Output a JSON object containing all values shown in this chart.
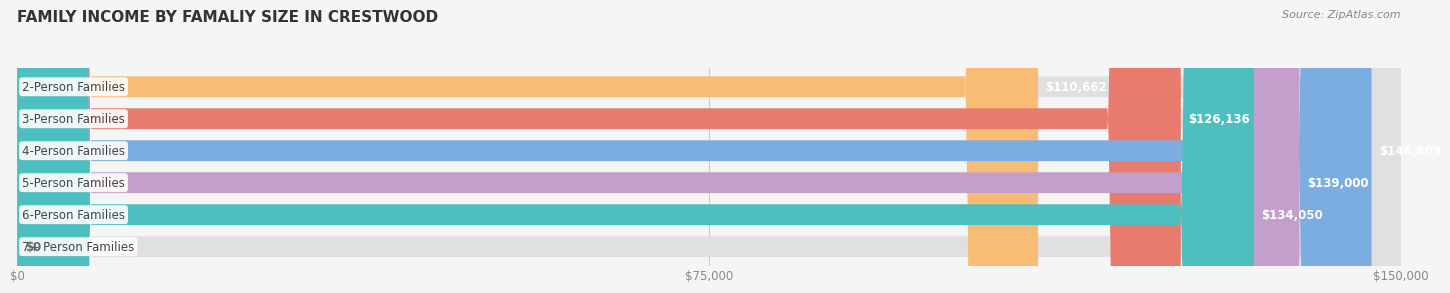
{
  "title": "FAMILY INCOME BY FAMALIY SIZE IN CRESTWOOD",
  "source": "Source: ZipAtlas.com",
  "categories": [
    "2-Person Families",
    "3-Person Families",
    "4-Person Families",
    "5-Person Families",
    "6-Person Families",
    "7+ Person Families"
  ],
  "values": [
    110662,
    126136,
    146809,
    139000,
    134050,
    0
  ],
  "bar_colors": [
    "#F9BC74",
    "#E87B6E",
    "#7BADE0",
    "#C49FCC",
    "#4DBFBF",
    "#C5C9EC"
  ],
  "value_labels": [
    "$110,662",
    "$126,136",
    "$146,809",
    "$139,000",
    "$134,050",
    "$0"
  ],
  "xlim": [
    0,
    150000
  ],
  "xticks": [
    0,
    75000,
    150000
  ],
  "xticklabels": [
    "$0",
    "$75,000",
    "$150,000"
  ],
  "background_color": "#f5f5f5",
  "title_fontsize": 11,
  "source_fontsize": 8,
  "label_fontsize": 8.5,
  "value_fontsize": 8.5
}
